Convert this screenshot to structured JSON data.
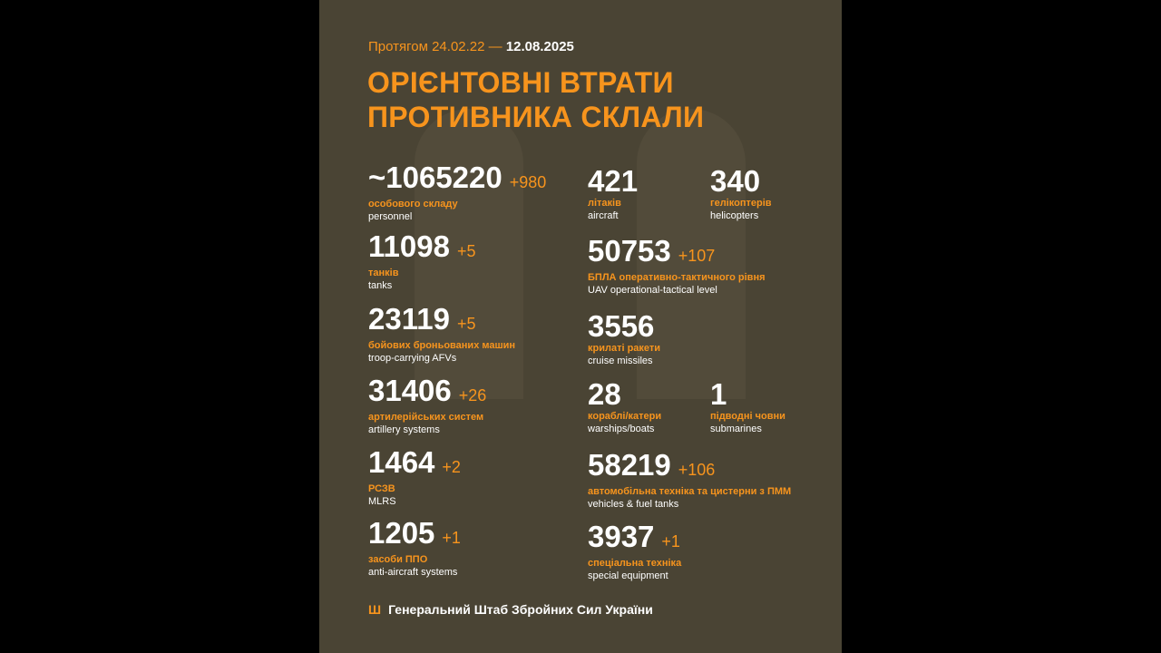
{
  "header": {
    "period_prefix": "Протягом 24.02.22 —",
    "period_end": "12.08.2025",
    "title_line1": "ОРІЄНТОВНІ ВТРАТИ",
    "title_line2": "ПРОТИВНИКА СКЛАЛИ"
  },
  "stats": [
    {
      "value": "~1065220",
      "delta": "+980",
      "ua": "особового складу",
      "en": "personnel"
    },
    {
      "value": "11098",
      "delta": "+5",
      "ua": "танків",
      "en": "tanks"
    },
    {
      "value": "23119",
      "delta": "+5",
      "ua": "бойових броньованих машин",
      "en": "troop-carrying AFVs"
    },
    {
      "value": "31406",
      "delta": "+26",
      "ua": "артилерійських систем",
      "en": "artillery systems"
    },
    {
      "value": "1464",
      "delta": "+2",
      "ua": "РСЗВ",
      "en": "MLRS"
    },
    {
      "value": "1205",
      "delta": "+1",
      "ua": "засоби ППО",
      "en": "anti-aircraft systems"
    },
    {
      "value": "421",
      "delta": "",
      "ua": "літаків",
      "en": "aircraft"
    },
    {
      "value": "340",
      "delta": "",
      "ua": "гелікоптерів",
      "en": "helicopters"
    },
    {
      "value": "50753",
      "delta": "+107",
      "ua": "БПЛА оперативно-тактичного рівня",
      "en": "UAV operational-tactical level"
    },
    {
      "value": "3556",
      "delta": "",
      "ua": "крилаті ракети",
      "en": "cruise missiles"
    },
    {
      "value": "28",
      "delta": "",
      "ua": "кораблі/катери",
      "en": "warships/boats"
    },
    {
      "value": "1",
      "delta": "",
      "ua": "підводні човни",
      "en": "submarines"
    },
    {
      "value": "58219",
      "delta": "+106",
      "ua": "автомобільна техніка та цистерни з ПММ",
      "en": "vehicles & fuel tanks"
    },
    {
      "value": "3937",
      "delta": "+1",
      "ua": "спеціальна техніка",
      "en": "special equipment"
    }
  ],
  "footer": {
    "icon": "trident-icon",
    "text": "Генеральний Штаб Збройних Сил України"
  },
  "colors": {
    "background": "#4a4434",
    "accent": "#f7941d",
    "text": "#ffffff"
  }
}
